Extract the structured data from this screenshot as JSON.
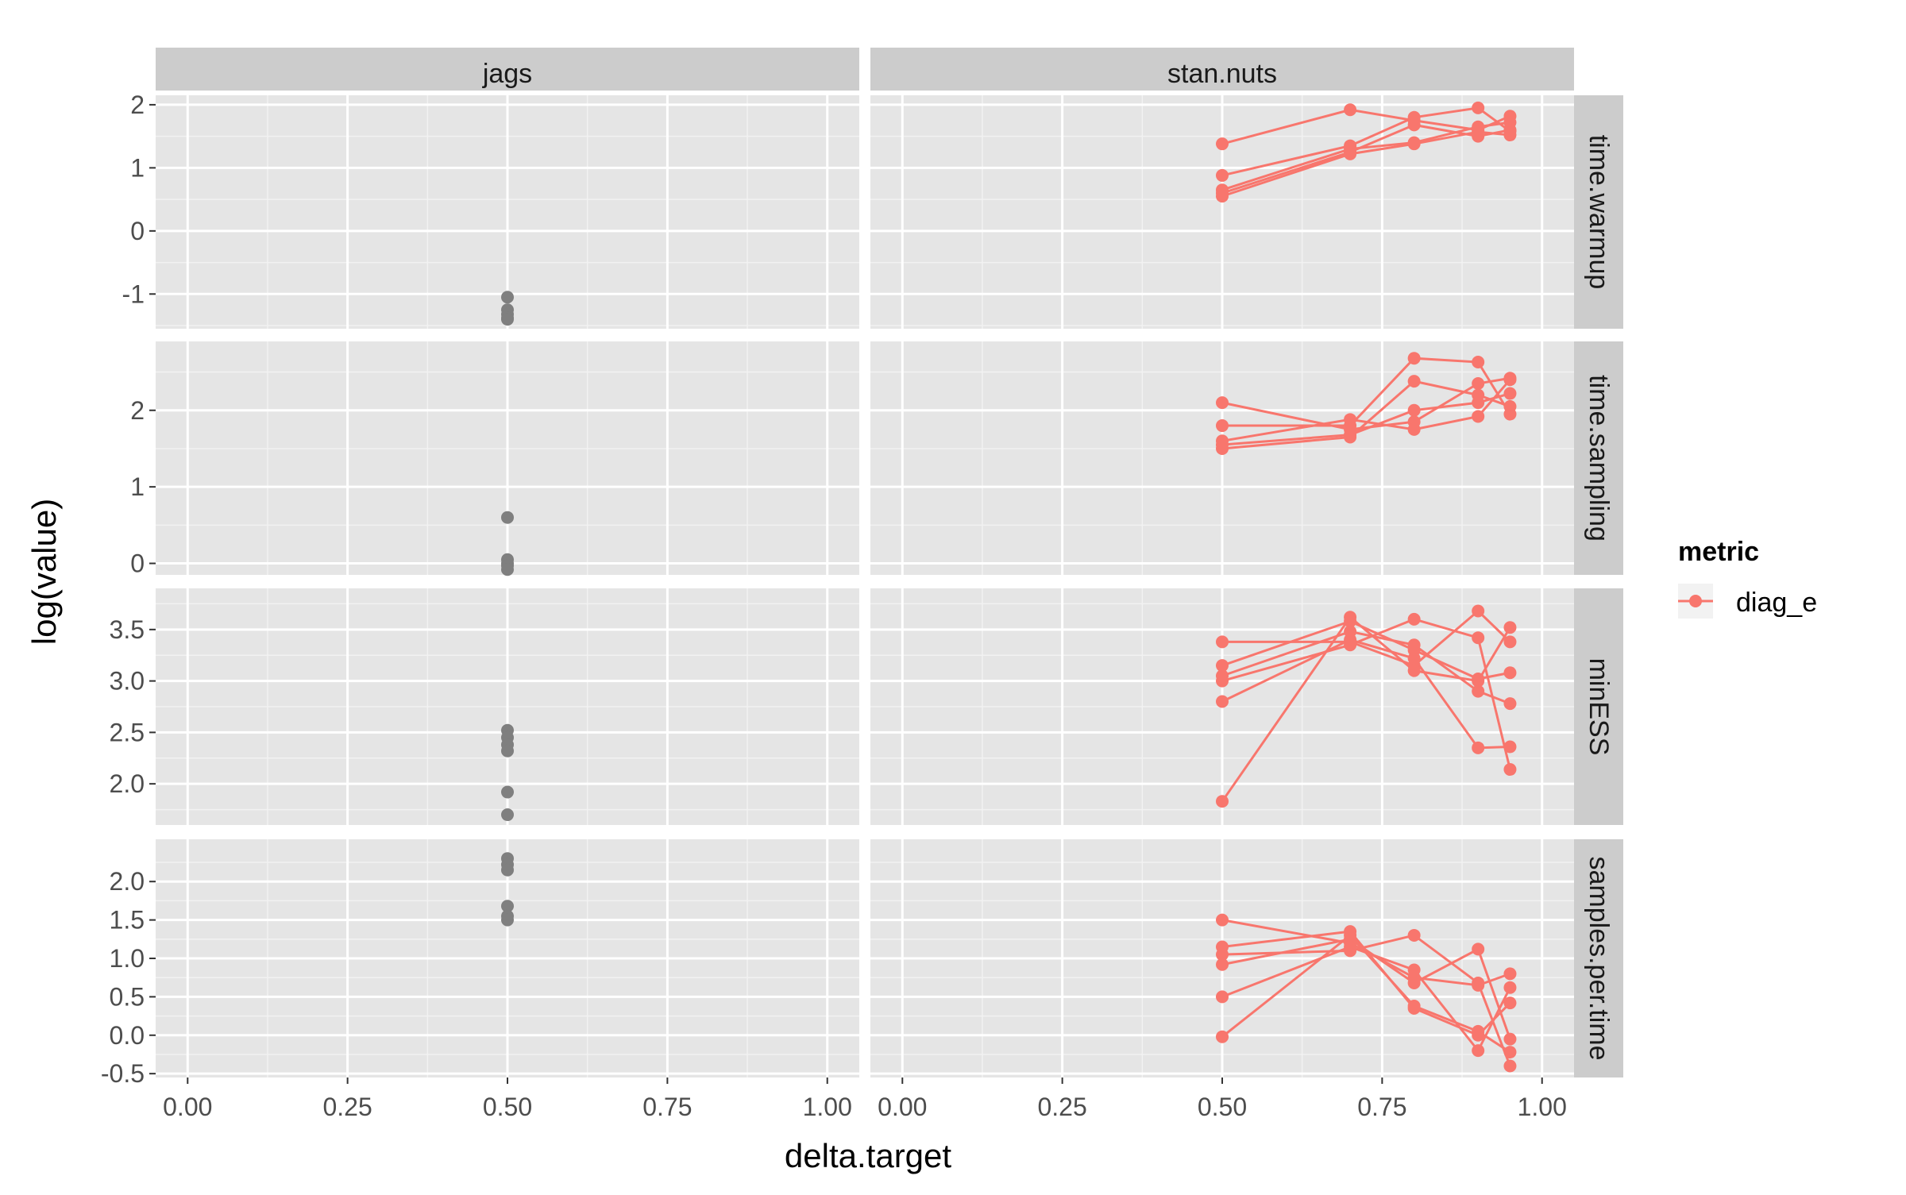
{
  "chart_data": {
    "type": "scatter",
    "title": "",
    "xlabel": "delta.target",
    "ylabel": "log(value)",
    "colors": {
      "jags": "#7f7f7f",
      "stan": "#f8766d",
      "panel_bg": "#e5e5e5",
      "strip_bg": "#cccccc",
      "grid": "#ffffff"
    },
    "columns": [
      "jags",
      "stan.nuts"
    ],
    "rows": [
      "time.warmup",
      "time.sampling",
      "minESS",
      "samples.per.time"
    ],
    "x_axis": {
      "lim": [
        -0.05,
        1.05
      ],
      "ticks": [
        0.0,
        0.25,
        0.5,
        0.75,
        1.0
      ],
      "tick_labels": [
        "0.00",
        "0.25",
        "0.50",
        "0.75",
        "1.00"
      ]
    },
    "legend": {
      "title": "metric",
      "entries": [
        "diag_e"
      ],
      "position": "right"
    },
    "panels": {
      "time.warmup": {
        "ylim": [
          -1.55,
          2.15
        ],
        "ticks": [
          -1,
          0,
          1,
          2
        ],
        "tick_labels": [
          "-1",
          "0",
          "1",
          "2"
        ],
        "jags": [
          -1.05,
          -1.25,
          -1.32,
          -1.38,
          -1.4
        ],
        "stan": [
          [
            [
              0.5,
              1.38
            ],
            [
              0.7,
              1.92
            ],
            [
              0.8,
              1.75
            ],
            [
              0.9,
              1.6
            ],
            [
              0.95,
              1.82
            ]
          ],
          [
            [
              0.5,
              0.88
            ],
            [
              0.7,
              1.35
            ],
            [
              0.8,
              1.8
            ],
            [
              0.9,
              1.95
            ],
            [
              0.95,
              1.58
            ]
          ],
          [
            [
              0.5,
              0.65
            ],
            [
              0.7,
              1.3
            ],
            [
              0.8,
              1.4
            ],
            [
              0.9,
              1.65
            ],
            [
              0.95,
              1.72
            ]
          ],
          [
            [
              0.5,
              0.6
            ],
            [
              0.7,
              1.25
            ],
            [
              0.8,
              1.68
            ],
            [
              0.9,
              1.5
            ],
            [
              0.95,
              1.6
            ]
          ],
          [
            [
              0.5,
              0.55
            ],
            [
              0.7,
              1.22
            ],
            [
              0.8,
              1.38
            ],
            [
              0.9,
              1.57
            ],
            [
              0.95,
              1.52
            ]
          ]
        ]
      },
      "time.sampling": {
        "ylim": [
          -0.15,
          2.9
        ],
        "ticks": [
          0,
          1,
          2
        ],
        "tick_labels": [
          "0",
          "1",
          "2"
        ],
        "jags": [
          0.6,
          0.05,
          0.0,
          -0.03,
          -0.08
        ],
        "stan": [
          [
            [
              0.5,
              2.1
            ],
            [
              0.7,
              1.75
            ],
            [
              0.8,
              1.85
            ],
            [
              0.9,
              2.35
            ],
            [
              0.95,
              2.42
            ]
          ],
          [
            [
              0.5,
              1.8
            ],
            [
              0.7,
              1.8
            ],
            [
              0.8,
              2.68
            ],
            [
              0.9,
              2.63
            ],
            [
              0.95,
              1.95
            ]
          ],
          [
            [
              0.5,
              1.6
            ],
            [
              0.7,
              1.88
            ],
            [
              0.8,
              1.75
            ],
            [
              0.9,
              1.92
            ],
            [
              0.95,
              2.4
            ]
          ],
          [
            [
              0.5,
              1.55
            ],
            [
              0.7,
              1.68
            ],
            [
              0.8,
              2.0
            ],
            [
              0.9,
              2.1
            ],
            [
              0.95,
              2.22
            ]
          ],
          [
            [
              0.5,
              1.5
            ],
            [
              0.7,
              1.65
            ],
            [
              0.8,
              2.38
            ],
            [
              0.9,
              2.2
            ],
            [
              0.95,
              2.05
            ]
          ]
        ]
      },
      "minESS": {
        "ylim": [
          1.6,
          3.9
        ],
        "ticks": [
          2.0,
          2.5,
          3.0,
          3.5
        ],
        "tick_labels": [
          "2.0",
          "2.5",
          "3.0",
          "3.5"
        ],
        "jags": [
          2.52,
          2.45,
          2.38,
          2.32,
          1.92,
          1.7
        ],
        "stan": [
          [
            [
              0.5,
              3.38
            ],
            [
              0.7,
              3.38
            ],
            [
              0.8,
              3.15
            ],
            [
              0.9,
              3.68
            ],
            [
              0.95,
              3.38
            ]
          ],
          [
            [
              0.5,
              3.15
            ],
            [
              0.7,
              3.58
            ],
            [
              0.8,
              3.3
            ],
            [
              0.9,
              3.02
            ],
            [
              0.95,
              3.08
            ]
          ],
          [
            [
              0.5,
              3.05
            ],
            [
              0.7,
              3.48
            ],
            [
              0.8,
              3.35
            ],
            [
              0.9,
              2.9
            ],
            [
              0.95,
              2.78
            ]
          ],
          [
            [
              0.5,
              3.0
            ],
            [
              0.7,
              3.35
            ],
            [
              0.8,
              3.6
            ],
            [
              0.9,
              3.42
            ],
            [
              0.95,
              2.14
            ]
          ],
          [
            [
              0.5,
              2.8
            ],
            [
              0.7,
              3.4
            ],
            [
              0.8,
              3.22
            ],
            [
              0.9,
              2.35
            ],
            [
              0.95,
              2.36
            ]
          ],
          [
            [
              0.5,
              1.83
            ],
            [
              0.7,
              3.62
            ],
            [
              0.8,
              3.1
            ],
            [
              0.9,
              3.0
            ],
            [
              0.95,
              3.52
            ]
          ]
        ]
      },
      "samples.per.time": {
        "ylim": [
          -0.55,
          2.55
        ],
        "ticks": [
          -0.5,
          0.0,
          0.5,
          1.0,
          1.5,
          2.0
        ],
        "tick_labels": [
          "-0.5",
          "0.0",
          "0.5",
          "1.0",
          "1.5",
          "2.0"
        ],
        "jags": [
          2.3,
          2.22,
          2.15,
          1.68,
          1.55,
          1.5
        ],
        "stan": [
          [
            [
              0.5,
              1.5
            ],
            [
              0.7,
              1.2
            ],
            [
              0.8,
              0.75
            ],
            [
              0.9,
              0.65
            ],
            [
              0.95,
              0.8
            ]
          ],
          [
            [
              0.5,
              1.15
            ],
            [
              0.7,
              1.35
            ],
            [
              0.8,
              0.35
            ],
            [
              0.9,
              0.0
            ],
            [
              0.95,
              0.42
            ]
          ],
          [
            [
              0.5,
              1.05
            ],
            [
              0.7,
              1.1
            ],
            [
              0.8,
              1.3
            ],
            [
              0.9,
              0.68
            ],
            [
              0.95,
              -0.4
            ]
          ],
          [
            [
              0.5,
              0.92
            ],
            [
              0.7,
              1.25
            ],
            [
              0.8,
              0.68
            ],
            [
              0.9,
              1.12
            ],
            [
              0.95,
              -0.05
            ]
          ],
          [
            [
              0.5,
              0.5
            ],
            [
              0.7,
              1.15
            ],
            [
              0.8,
              0.85
            ],
            [
              0.9,
              -0.2
            ],
            [
              0.95,
              0.62
            ]
          ],
          [
            [
              0.5,
              -0.02
            ],
            [
              0.7,
              1.3
            ],
            [
              0.8,
              0.38
            ],
            [
              0.9,
              0.05
            ],
            [
              0.95,
              -0.22
            ]
          ]
        ]
      }
    }
  }
}
